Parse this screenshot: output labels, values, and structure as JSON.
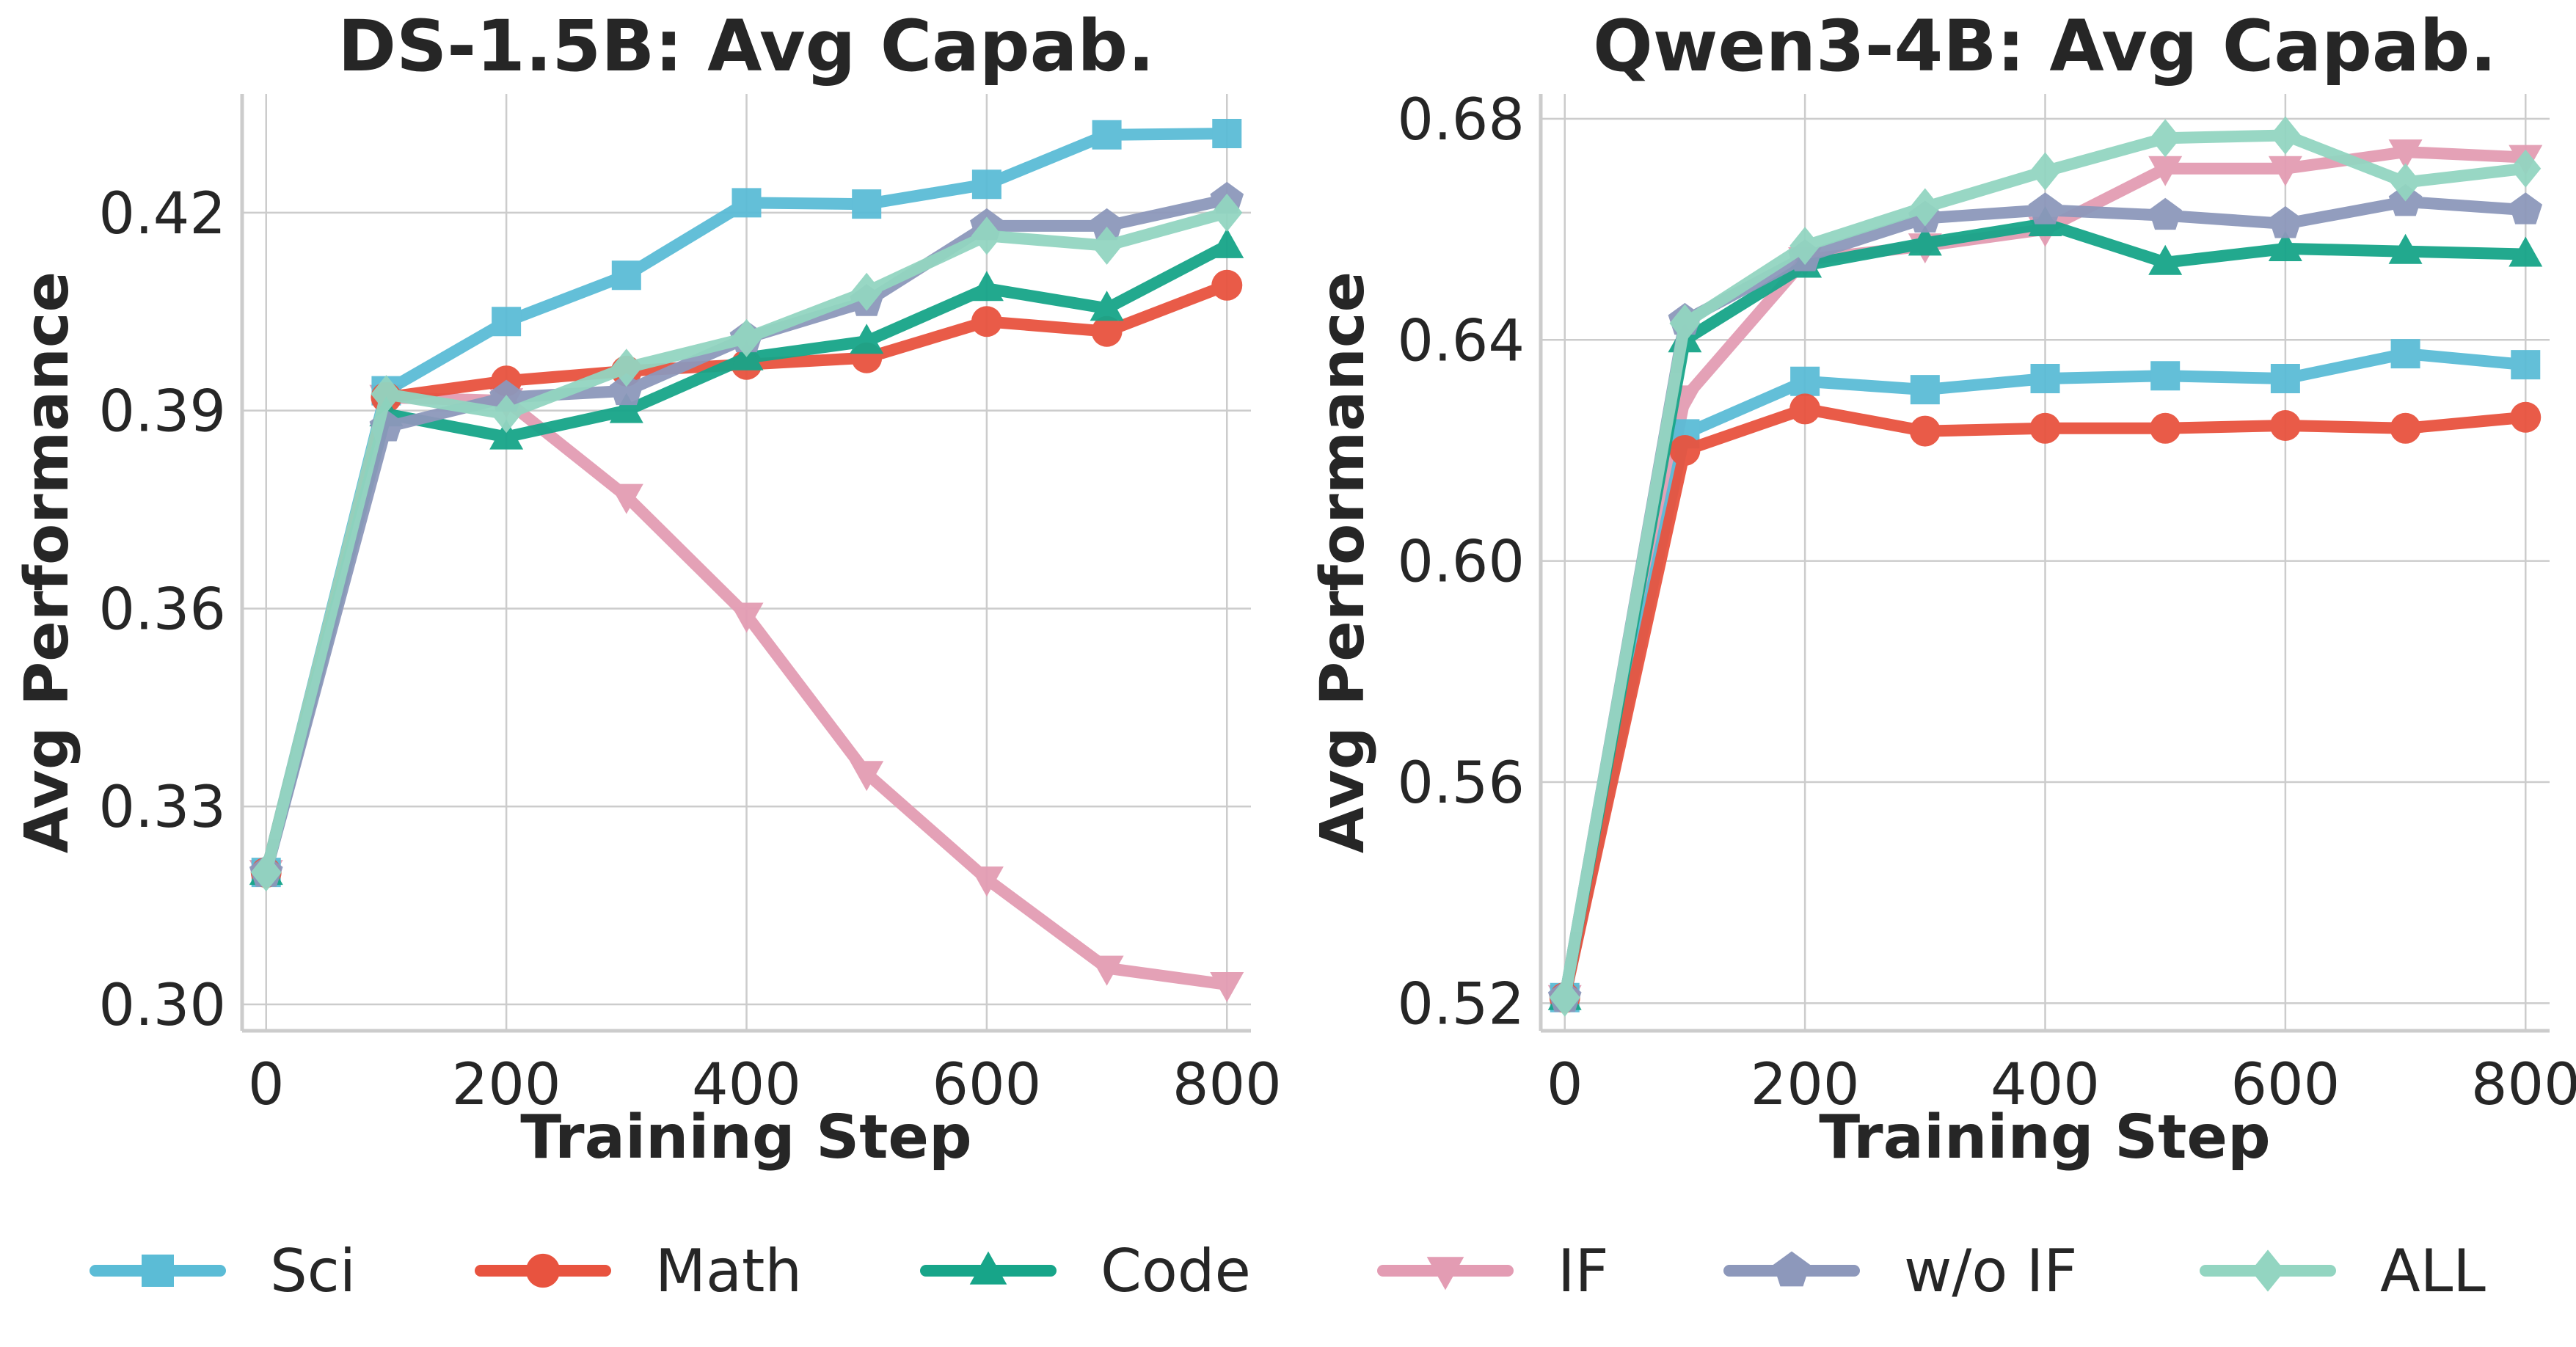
{
  "chart_data": [
    {
      "type": "line",
      "title": "DS-1.5B: Avg Capab.",
      "xlabel": "Training Step",
      "ylabel": "Avg Performance",
      "xlim": [
        -20,
        820
      ],
      "ylim": [
        0.296,
        0.438
      ],
      "xticks": [
        0,
        200,
        400,
        600,
        800
      ],
      "yticks": [
        0.3,
        0.33,
        0.36,
        0.39,
        0.42
      ],
      "xtick_labels": [
        "0",
        "200",
        "400",
        "600",
        "800"
      ],
      "ytick_labels": [
        "0.30",
        "0.33",
        "0.36",
        "0.39",
        "0.42"
      ],
      "grid": true,
      "x": [
        0,
        100,
        200,
        300,
        400,
        500,
        600,
        700,
        800
      ],
      "series": [
        {
          "name": "Sci",
          "values": [
            0.32,
            0.393,
            0.4035,
            0.4105,
            0.4215,
            0.4213,
            0.4243,
            0.4318,
            0.432
          ]
        },
        {
          "name": "Math",
          "values": [
            0.32,
            0.392,
            0.3945,
            0.396,
            0.397,
            0.398,
            0.4035,
            0.402,
            0.409
          ]
        },
        {
          "name": "Code",
          "values": [
            0.32,
            0.3895,
            0.386,
            0.39,
            0.398,
            0.4005,
            0.4085,
            0.4055,
            0.415
          ]
        },
        {
          "name": "IF",
          "values": [
            0.32,
            0.392,
            0.3915,
            0.377,
            0.359,
            0.335,
            0.319,
            0.3055,
            0.303
          ]
        },
        {
          "name": "w/o IF",
          "values": [
            0.32,
            0.3875,
            0.392,
            0.393,
            0.401,
            0.4065,
            0.418,
            0.418,
            0.422
          ]
        },
        {
          "name": "ALL",
          "values": [
            0.32,
            0.3925,
            0.3895,
            0.3965,
            0.401,
            0.408,
            0.4165,
            0.415,
            0.42
          ]
        }
      ]
    },
    {
      "type": "line",
      "title": "Qwen3-4B: Avg Capab.",
      "xlabel": "Training Step",
      "ylabel": "Avg Performance",
      "xlim": [
        -20,
        820
      ],
      "ylim": [
        0.515,
        0.6845
      ],
      "xticks": [
        0,
        200,
        400,
        600,
        800
      ],
      "yticks": [
        0.52,
        0.56,
        0.6,
        0.64,
        0.68
      ],
      "xtick_labels": [
        "0",
        "200",
        "400",
        "600",
        "800"
      ],
      "ytick_labels": [
        "0.52",
        "0.56",
        "0.60",
        "0.64",
        "0.68"
      ],
      "grid": true,
      "x": [
        0,
        100,
        200,
        300,
        400,
        500,
        600,
        700,
        800
      ],
      "series": [
        {
          "name": "Sci",
          "values": [
            0.521,
            0.623,
            0.6325,
            0.631,
            0.633,
            0.6335,
            0.633,
            0.6375,
            0.6355
          ]
        },
        {
          "name": "Math",
          "values": [
            0.521,
            0.62,
            0.6275,
            0.6235,
            0.624,
            0.624,
            0.6245,
            0.624,
            0.626
          ]
        },
        {
          "name": "Code",
          "values": [
            0.521,
            0.64,
            0.6535,
            0.6575,
            0.661,
            0.654,
            0.6565,
            0.656,
            0.6555
          ]
        },
        {
          "name": "IF",
          "values": [
            0.521,
            0.6295,
            0.6545,
            0.657,
            0.66,
            0.671,
            0.671,
            0.674,
            0.673
          ]
        },
        {
          "name": "w/o IF",
          "values": [
            0.521,
            0.6435,
            0.655,
            0.662,
            0.6635,
            0.6625,
            0.661,
            0.665,
            0.6635
          ]
        },
        {
          "name": "ALL",
          "values": [
            0.521,
            0.643,
            0.657,
            0.664,
            0.6705,
            0.6765,
            0.677,
            0.6685,
            0.671
          ]
        }
      ]
    }
  ],
  "legend": {
    "placement": "bottom",
    "items": [
      {
        "label": "Sci",
        "color": "#5bbcd6",
        "marker": "square"
      },
      {
        "label": "Math",
        "color": "#e8533f",
        "marker": "circle"
      },
      {
        "label": "Code",
        "color": "#17a589",
        "marker": "triangle-up"
      },
      {
        "label": "IF",
        "color": "#e39cb3",
        "marker": "triangle-down"
      },
      {
        "label": "w/o IF",
        "color": "#8d98bb",
        "marker": "pentagon"
      },
      {
        "label": "ALL",
        "color": "#93d5c1",
        "marker": "diamond"
      }
    ]
  }
}
